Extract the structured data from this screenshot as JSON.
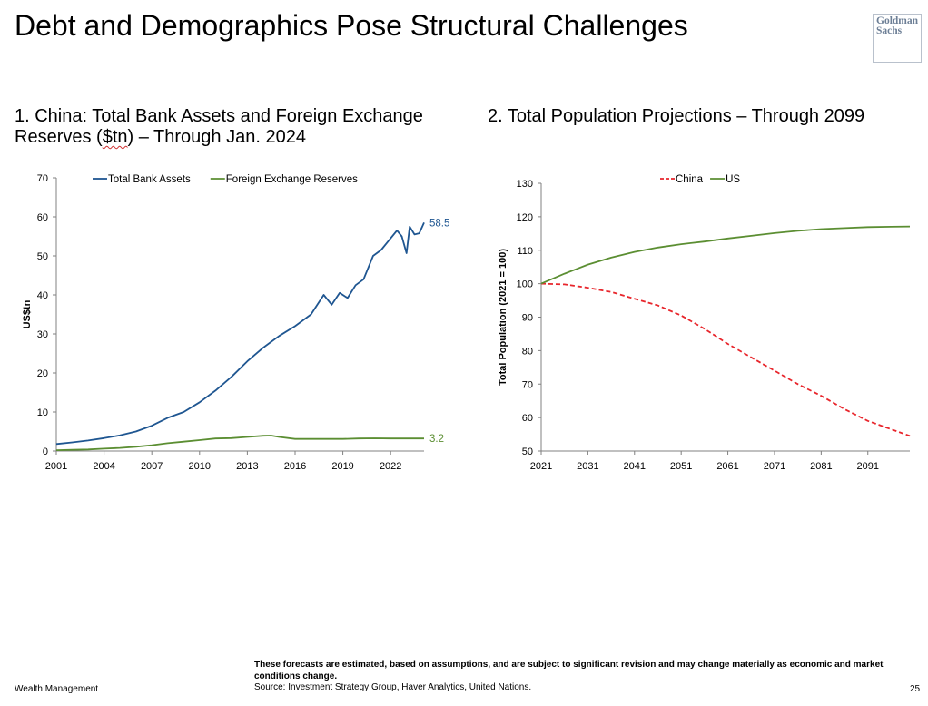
{
  "page": {
    "title": "Debt and Demographics Pose Structural Challenges",
    "logo_line1": "Goldman",
    "logo_line2": "Sachs",
    "subtitle1_a": "1. China: Total Bank Assets and Foreign Exchange Reserves (",
    "subtitle1_b": "$tn",
    "subtitle1_c": ") – Through Jan. 2024",
    "subtitle2": "2. Total Population Projections – Through 2099",
    "disclaimer": "These forecasts are estimated, based on assumptions, and are subject to significant revision and may change materially as economic and market conditions change.",
    "source": "Source: Investment Strategy Group, Haver Analytics, United Nations.",
    "footer_left": "Wealth Management",
    "page_number": "25"
  },
  "colors": {
    "blue": "#1f5691",
    "green": "#5b8e32",
    "red": "#e8262c",
    "axis": "#808080"
  },
  "chart_data": [
    {
      "type": "line",
      "title": "1. China: Total Bank Assets and Foreign Exchange Reserves ($tn) – Through Jan. 2024",
      "xlabel": "",
      "ylabel": "US$tn",
      "xlim": [
        2001,
        2024.1
      ],
      "ylim": [
        0,
        70
      ],
      "yticks": [
        0,
        10,
        20,
        30,
        40,
        50,
        60,
        70
      ],
      "xticks": [
        2001,
        2004,
        2007,
        2010,
        2013,
        2016,
        2019,
        2022
      ],
      "legend": "top",
      "series": [
        {
          "name": "Total Bank Assets",
          "color": "#1f5691",
          "end_label": "58.5",
          "x": [
            2001,
            2002,
            2003,
            2004,
            2005,
            2006,
            2007,
            2008,
            2009,
            2010,
            2011,
            2012,
            2013,
            2014,
            2014.5,
            2015,
            2016,
            2017,
            2017.8,
            2018.3,
            2018.8,
            2019.3,
            2019.8,
            2020.3,
            2020.9,
            2021.4,
            2021.9,
            2022.4,
            2022.7,
            2023,
            2023.2,
            2023.5,
            2023.8,
            2024.1
          ],
          "y": [
            1.8,
            2.2,
            2.7,
            3.3,
            4,
            5,
            6.5,
            8.5,
            10,
            12.5,
            15.5,
            19,
            23,
            26.5,
            28,
            29.5,
            32,
            35,
            40,
            37.5,
            40.5,
            39.2,
            42.5,
            44,
            50,
            51.5,
            54,
            56.5,
            55,
            50.7,
            57.5,
            55.5,
            55.8,
            58.5
          ]
        },
        {
          "name": "Foreign Exchange Reserves",
          "color": "#5b8e32",
          "end_label": "3.2",
          "x": [
            2001,
            2002,
            2003,
            2004,
            2005,
            2006,
            2007,
            2008,
            2009,
            2010,
            2011,
            2012,
            2013,
            2014,
            2014.5,
            2015,
            2016,
            2017,
            2018,
            2019,
            2020,
            2021,
            2022,
            2023,
            2024.1
          ],
          "y": [
            0.2,
            0.3,
            0.4,
            0.6,
            0.8,
            1.1,
            1.5,
            2,
            2.4,
            2.8,
            3.2,
            3.3,
            3.6,
            3.9,
            3.95,
            3.6,
            3.1,
            3.1,
            3.1,
            3.1,
            3.2,
            3.25,
            3.2,
            3.2,
            3.2
          ]
        }
      ]
    },
    {
      "type": "line",
      "title": "2. Total Population Projections – Through 2099",
      "xlabel": "",
      "ylabel": "Total Population (2021 = 100)",
      "xlim": [
        2021,
        2100
      ],
      "ylim": [
        50,
        130
      ],
      "yticks": [
        50,
        60,
        70,
        80,
        90,
        100,
        110,
        120,
        130
      ],
      "xticks": [
        2021,
        2031,
        2041,
        2051,
        2061,
        2071,
        2081,
        2091
      ],
      "legend": "top",
      "series": [
        {
          "name": "China",
          "color": "#e8262c",
          "dashed": true,
          "x": [
            2021,
            2026,
            2031,
            2036,
            2041,
            2046,
            2051,
            2056,
            2061,
            2066,
            2071,
            2076,
            2081,
            2086,
            2091,
            2096,
            2100
          ],
          "y": [
            100,
            99.8,
            98.8,
            97.5,
            95.5,
            93.5,
            90.5,
            86.5,
            82,
            78,
            74,
            70,
            66.5,
            62.5,
            59,
            56.5,
            54.5
          ]
        },
        {
          "name": "US",
          "color": "#5b8e32",
          "dashed": false,
          "x": [
            2021,
            2026,
            2031,
            2036,
            2041,
            2046,
            2051,
            2056,
            2061,
            2066,
            2071,
            2076,
            2081,
            2086,
            2091,
            2096,
            2100
          ],
          "y": [
            100,
            103,
            105.7,
            107.8,
            109.5,
            110.8,
            111.8,
            112.6,
            113.5,
            114.3,
            115.1,
            115.8,
            116.3,
            116.6,
            116.9,
            117,
            117.1
          ]
        }
      ]
    }
  ]
}
